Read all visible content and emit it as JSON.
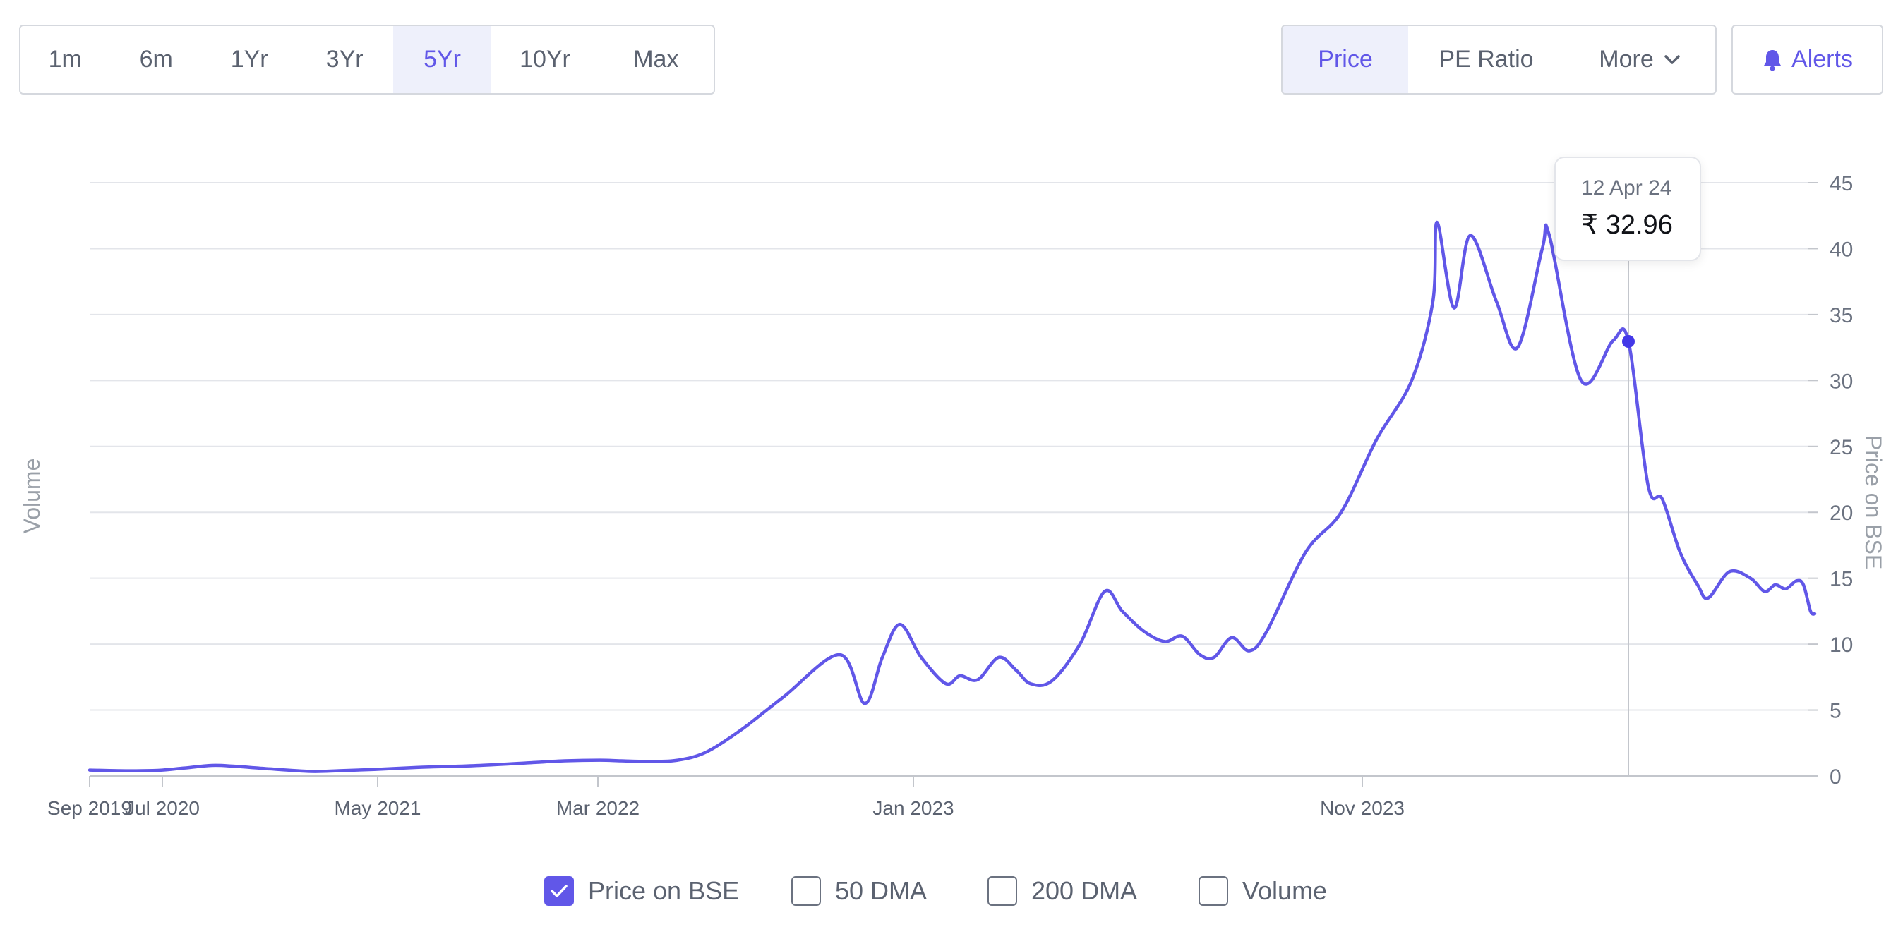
{
  "range_buttons": [
    {
      "label": "1m",
      "active": false
    },
    {
      "label": "6m",
      "active": false
    },
    {
      "label": "1Yr",
      "active": false
    },
    {
      "label": "3Yr",
      "active": false
    },
    {
      "label": "5Yr",
      "active": true
    },
    {
      "label": "10Yr",
      "active": false
    },
    {
      "label": "Max",
      "active": false
    }
  ],
  "metric_buttons": {
    "price": "Price",
    "pe_ratio": "PE Ratio",
    "more": "More",
    "alerts": "Alerts"
  },
  "colors": {
    "accent": "#6157e8",
    "grid": "#e3e5ea",
    "axis_text": "#6b7280"
  },
  "tooltip": {
    "date": "12 Apr 24",
    "value": "₹ 32.96"
  },
  "legend": [
    {
      "label": "Price on BSE",
      "checked": true
    },
    {
      "label": "50 DMA",
      "checked": false
    },
    {
      "label": "200 DMA",
      "checked": false
    },
    {
      "label": "Volume",
      "checked": false
    }
  ],
  "chart_data": {
    "type": "line",
    "y_left_label": "Volume",
    "y_right_label": "Price on BSE",
    "ylim": [
      0,
      45
    ],
    "y_ticks": [
      0,
      5,
      10,
      15,
      20,
      25,
      30,
      35,
      40,
      45
    ],
    "x_ticks": [
      "Sep 2019",
      "Jul 2020",
      "May 2021",
      "Mar 2022",
      "Jan 2023",
      "Nov 2023"
    ],
    "grid": true,
    "series": [
      {
        "name": "Price on BSE",
        "x": [
          "Sep 2019",
          "Dec 2019",
          "Mar 2020",
          "Jul 2020",
          "Sep 2020",
          "Oct 2020",
          "Nov 2020",
          "Jan 2021",
          "Mar 2021",
          "Apr 2021",
          "May 2021",
          "Jul 2021",
          "Aug 2021",
          "Oct 2021",
          "Dec 2021",
          "Jan 2022",
          "Mar 2022",
          "Apr 2022",
          "May 2022",
          "Jun 2022",
          "Jul 2022",
          "Aug 2022",
          "Sep 2022",
          "Sep 2022",
          "Oct 2022",
          "Nov 2022",
          "Nov 2022",
          "Dec 2022",
          "Dec 2022",
          "Jan 2023",
          "Jan 2023",
          "Feb 2023",
          "Feb 2023",
          "Mar 2023",
          "Mar 2023",
          "Apr 2023",
          "Apr 2023",
          "May 2023",
          "May 2023",
          "Jun 2023",
          "Jun 2023",
          "Jul 2023",
          "Jul 2023",
          "Aug 2023",
          "Aug 2023",
          "Sep 2023",
          "Sep 2023",
          "Oct 2023",
          "Oct 2023",
          "Nov 2023",
          "Nov 2023",
          "Dec 2023",
          "Dec 2023",
          "Jan 2024",
          "Jan 2024",
          "Feb 2024",
          "Feb 2024",
          "Feb 2024",
          "Mar 2024",
          "Mar 2024",
          "Apr 2024",
          "Apr 2024",
          "May 2024",
          "May 2024",
          "May 2024",
          "Jun 2024",
          "Jun 2024",
          "Jul 2024",
          "Jul 2024",
          "Aug 2024",
          "Aug 2024",
          "Sep 2024",
          "Sep 2024",
          "Sep 2024",
          "Oct 2024"
        ],
        "values": [
          0.45,
          0.4,
          0.4,
          0.45,
          0.6,
          0.8,
          0.75,
          0.55,
          0.35,
          0.4,
          0.5,
          0.65,
          0.7,
          0.8,
          1.0,
          1.15,
          1.2,
          1.15,
          1.1,
          1.2,
          1.8,
          3.5,
          6.0,
          9.2,
          5.5,
          9.0,
          11.5,
          9.0,
          7.0,
          7.6,
          7.3,
          9.0,
          8.0,
          7.0,
          7.2,
          10.0,
          14.0,
          12.5,
          11.0,
          10.2,
          10.6,
          9.2,
          9.0,
          10.5,
          9.5,
          11.0,
          17.0,
          20.0,
          25.5,
          30.0,
          36.0,
          42.0,
          35.5,
          41.0,
          36.0,
          32.5,
          40.0,
          41.0,
          30.0,
          33.0,
          32.96,
          22.0,
          21.0,
          17.0,
          14.5,
          13.5,
          15.5,
          15.0,
          14.0,
          14.5,
          14.2,
          14.8,
          14.5,
          12.5,
          12.3
        ]
      }
    ]
  }
}
